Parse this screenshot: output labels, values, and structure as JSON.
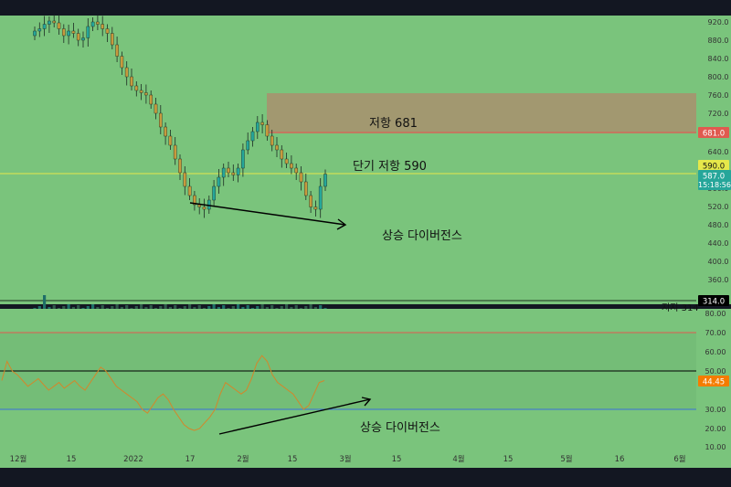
{
  "theme": {
    "frame": "#131722",
    "pane_bg": "#7ac47c",
    "candle_up": "#26a69a",
    "candle_down": "#c79a3e",
    "resistance_zone": "#a9906e",
    "resistance_line": "#e05a4f",
    "short_resistance_line": "#e6e84a",
    "rsi_line": "#d4862a",
    "rsi_upper": "#e05a4f",
    "rsi_mid": "#000000",
    "rsi_lower": "#3b6fd8",
    "arrow": "#000000"
  },
  "annotations": {
    "resistance": "저항 681",
    "short_resistance": "단기 저항 590",
    "divergence_price": "상승 다이버전스",
    "divergence_rsi": "상승 다이버전스",
    "support_label": "지지 314"
  },
  "price_axis": {
    "ticks": [
      "920.0",
      "880.0",
      "840.0",
      "800.0",
      "760.0",
      "720.0",
      "640.0",
      "560.0",
      "520.0",
      "480.0",
      "440.0",
      "400.0",
      "360.0"
    ]
  },
  "rsi_axis": {
    "ticks": [
      "80.00",
      "70.00",
      "60.00",
      "50.00",
      "30.00",
      "20.00",
      "10.00"
    ]
  },
  "time_axis": {
    "ticks": [
      "12월",
      "15",
      "2022",
      "17",
      "2월",
      "15",
      "3월",
      "15",
      "4월",
      "15",
      "5월",
      "16",
      "6월"
    ]
  },
  "badges": {
    "resistance": "681.0",
    "short_resistance": "590.0",
    "last_price": "587.0",
    "countdown": "15:18:56",
    "support": "314.0",
    "rsi": "44.45"
  },
  "chart_data": [
    {
      "type": "candlestick",
      "ylim": [
        300,
        940
      ],
      "resistance_zone": [
        681,
        765
      ],
      "resistance": 681,
      "short_resistance": 590,
      "support": 314,
      "last_price": 587,
      "series": [
        {
          "values": [
            900,
            905,
            915,
            922,
            918,
            905,
            890,
            900,
            895,
            880,
            885,
            910,
            920,
            915,
            905,
            895,
            870,
            845,
            820,
            800,
            780,
            770,
            765,
            760,
            740,
            720,
            690,
            670,
            650,
            620,
            590,
            560,
            540,
            520,
            515,
            510,
            530,
            560,
            580,
            600,
            590,
            585,
            600,
            640,
            660,
            680,
            700,
            695,
            670,
            650,
            640,
            620,
            610,
            600,
            590,
            570,
            540,
            515,
            510,
            560,
            587
          ]
        }
      ]
    },
    {
      "type": "line",
      "title": "",
      "ylim": [
        5,
        85
      ],
      "levels": [
        70,
        50,
        30
      ],
      "last_value": 44.45,
      "series": [
        {
          "values": [
            45,
            55,
            50,
            48,
            45,
            42,
            44,
            46,
            43,
            40,
            42,
            44,
            41,
            43,
            45,
            42,
            40,
            44,
            48,
            52,
            50,
            46,
            42,
            40,
            38,
            36,
            34,
            30,
            28,
            32,
            36,
            38,
            35,
            30,
            26,
            22,
            20,
            19,
            20,
            23,
            26,
            30,
            38,
            44,
            42,
            40,
            38,
            40,
            46,
            54,
            58,
            55,
            48,
            44,
            42,
            40,
            38,
            34,
            30,
            32,
            38,
            44,
            45
          ]
        }
      ]
    }
  ]
}
